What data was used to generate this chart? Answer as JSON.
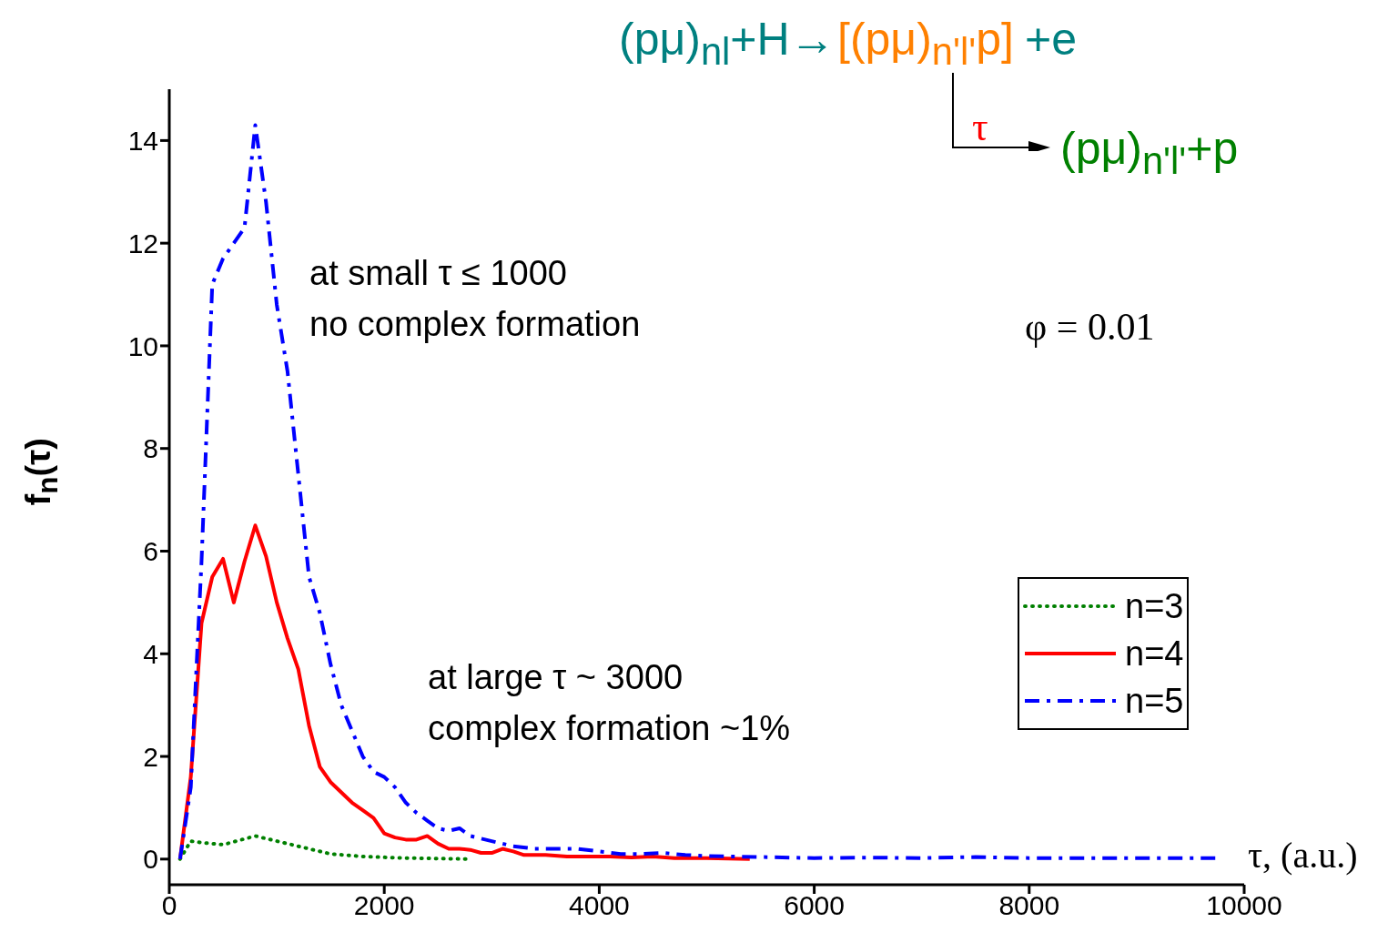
{
  "chart_data": {
    "type": "line",
    "xlabel": "τ,  (a.u.)",
    "ylabel": "f$_{n}$(τ)",
    "xlim": [
      0,
      10000
    ],
    "xticks": [
      0,
      2000,
      4000,
      6000,
      8000,
      10000
    ],
    "ylim": [
      -0.5,
      15
    ],
    "yticks": [
      0,
      2,
      4,
      6,
      8,
      10,
      12,
      14
    ],
    "legend": "right",
    "grid": false,
    "annotations": [
      "(pμ)$_{nl}$+H→",
      "[(pμ)$_{n'l'}$p]",
      "+e",
      "τ",
      "(pμ)$_{n'l'}$+p",
      "at small τ ≤ 1000",
      "no complex formation",
      "φ = 0.01",
      "at large τ ~ 3000",
      "complex formation ~1%"
    ],
    "series": [
      {
        "name": "n=3",
        "color": "#008000",
        "line_style": "dotted",
        "x": [
          100,
          200,
          300,
          500,
          800,
          1000,
          1200,
          1500,
          1800,
          2200,
          2800
        ],
        "values": [
          0,
          0.35,
          0.32,
          0.28,
          0.45,
          0.35,
          0.25,
          0.1,
          0.05,
          0.02,
          0
        ]
      },
      {
        "name": "n=4",
        "color": "#ff0000",
        "line_style": "solid",
        "x": [
          100,
          200,
          300,
          400,
          500,
          600,
          700,
          800,
          900,
          1000,
          1100,
          1200,
          1300,
          1400,
          1500,
          1600,
          1700,
          1800,
          1900,
          2000,
          2100,
          2200,
          2300,
          2400,
          2500,
          2600,
          2700,
          2800,
          2900,
          3000,
          3100,
          3200,
          3300,
          3500,
          3700,
          3900,
          4100,
          4300,
          4500,
          4700,
          5000,
          5400
        ],
        "values": [
          0,
          1.6,
          4.6,
          5.5,
          5.85,
          5.0,
          5.8,
          6.5,
          5.9,
          5.0,
          4.3,
          3.7,
          2.6,
          1.8,
          1.5,
          1.3,
          1.1,
          0.95,
          0.8,
          0.5,
          0.42,
          0.38,
          0.38,
          0.45,
          0.3,
          0.2,
          0.2,
          0.18,
          0.12,
          0.12,
          0.2,
          0.15,
          0.08,
          0.08,
          0.05,
          0.05,
          0.05,
          0.03,
          0.05,
          0.02,
          0.02,
          0
        ]
      },
      {
        "name": "n=5",
        "color": "#0000ff",
        "line_style": "dashdot",
        "x": [
          100,
          200,
          300,
          400,
          500,
          600,
          700,
          800,
          900,
          1000,
          1100,
          1200,
          1300,
          1400,
          1500,
          1600,
          1700,
          1800,
          1900,
          2000,
          2100,
          2200,
          2300,
          2400,
          2500,
          2600,
          2700,
          2800,
          2900,
          3000,
          3200,
          3400,
          3600,
          3800,
          4000,
          4200,
          4400,
          4600,
          4800,
          5000,
          5500,
          6000,
          6500,
          7000,
          7500,
          8000,
          8500,
          9000,
          9500,
          9750
        ],
        "values": [
          0,
          1.4,
          5.8,
          11.2,
          11.7,
          12.0,
          12.3,
          14.3,
          12.8,
          10.8,
          9.5,
          7.5,
          5.5,
          4.8,
          3.8,
          3.0,
          2.5,
          2.0,
          1.7,
          1.6,
          1.4,
          1.1,
          0.9,
          0.75,
          0.6,
          0.55,
          0.6,
          0.45,
          0.4,
          0.35,
          0.25,
          0.2,
          0.2,
          0.2,
          0.15,
          0.1,
          0.1,
          0.12,
          0.08,
          0.06,
          0.04,
          0.02,
          0.03,
          0.02,
          0.04,
          0.02,
          0.02,
          0.02,
          0.02,
          0.02
        ]
      }
    ]
  }
}
